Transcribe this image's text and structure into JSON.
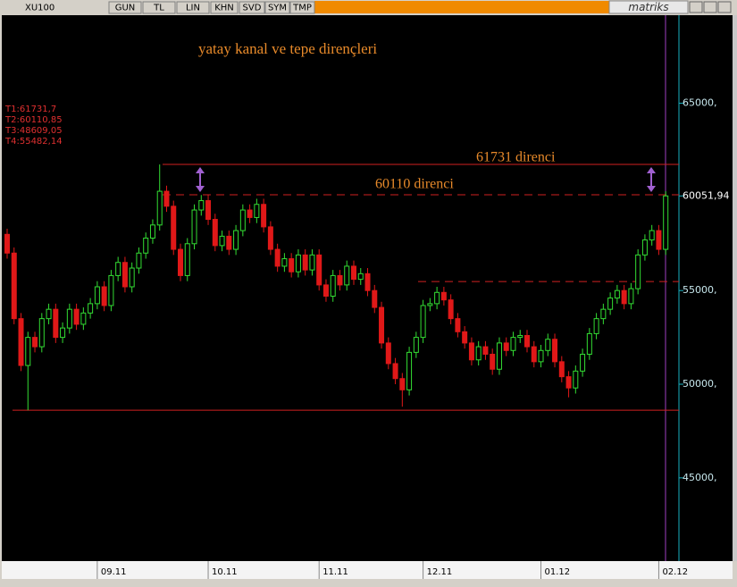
{
  "toolbar": {
    "symbol": "XU100",
    "buttons": [
      "GUN",
      "TL",
      "LIN",
      "KHN",
      "SVD",
      "SYM",
      "TMP"
    ],
    "brand": "matriks"
  },
  "chart_data": {
    "type": "candlestick",
    "title": "yatay kanal ve tepe dirençleri",
    "annotations": [
      "61731 direnci",
      "60110 direnci"
    ],
    "ylim": [
      40700,
      69700
    ],
    "yticks": [
      {
        "value": 45000,
        "label": "45000,"
      },
      {
        "value": 50000,
        "label": "50000,"
      },
      {
        "value": 55000,
        "label": "55000,"
      },
      {
        "value": 65000,
        "label": "65000,"
      }
    ],
    "last_price": {
      "value": 60051.94,
      "label": "60051,94"
    },
    "levels": [
      {
        "label": "T1:61731,7",
        "value": 61731.7
      },
      {
        "label": "T2:60110,85",
        "value": 60110.85
      },
      {
        "label": "T3:48609,05",
        "value": 48609.05
      },
      {
        "label": "T4:55482,14",
        "value": 55482.14
      }
    ],
    "up_color": "#33dd33",
    "down_color": "#e01818",
    "categories": [
      null,
      null,
      null,
      null,
      null,
      null,
      null,
      null,
      null,
      null,
      null,
      null,
      null,
      "09.11",
      null,
      null,
      null,
      null,
      null,
      null,
      null,
      null,
      null,
      null,
      null,
      null,
      null,
      null,
      null,
      "10.11",
      null,
      null,
      null,
      null,
      null,
      null,
      null,
      null,
      null,
      null,
      null,
      null,
      null,
      null,
      null,
      "11.11",
      null,
      null,
      null,
      null,
      null,
      null,
      null,
      null,
      null,
      null,
      null,
      null,
      null,
      null,
      "12.11",
      null,
      null,
      null,
      null,
      null,
      null,
      null,
      null,
      null,
      null,
      null,
      null,
      null,
      null,
      null,
      null,
      "01.12",
      null,
      null,
      null,
      null,
      null,
      null,
      null,
      null,
      null,
      null,
      null,
      null,
      null,
      null,
      null,
      null,
      "02.12",
      null
    ],
    "open": [
      58000,
      57000,
      53500,
      51000,
      52500,
      52000,
      53500,
      54000,
      52500,
      53000,
      54000,
      53200,
      53800,
      54300,
      55200,
      54200,
      55800,
      56500,
      55200,
      56200,
      57000,
      57800,
      58500,
      60300,
      59500,
      57200,
      55800,
      57500,
      59300,
      59800,
      58800,
      57400,
      57900,
      57200,
      58200,
      59300,
      58900,
      59600,
      58400,
      57200,
      56300,
      56700,
      56000,
      56900,
      56100,
      56900,
      55300,
      54700,
      55800,
      55300,
      56300,
      55600,
      55900,
      55000,
      54100,
      52200,
      51100,
      50300,
      49700,
      51700,
      52500,
      54200,
      54300,
      54900,
      54500,
      53500,
      52800,
      52200,
      51300,
      52000,
      51600,
      50800,
      52200,
      51800,
      52500,
      52600,
      52000,
      51200,
      51800,
      52400,
      51200,
      50400,
      49800,
      50700,
      51600,
      52700,
      53500,
      54000,
      54600,
      55000,
      54300,
      55100,
      56900,
      57700,
      58200,
      57200
    ],
    "high": [
      58300,
      57300,
      53800,
      52800,
      52800,
      53800,
      54300,
      54300,
      53300,
      54300,
      54300,
      54100,
      54600,
      55500,
      55500,
      56100,
      56800,
      56800,
      56500,
      57300,
      58100,
      58800,
      61731.7,
      60600,
      59800,
      57500,
      57800,
      59600,
      60100,
      60100,
      59100,
      58200,
      58200,
      58500,
      59600,
      59600,
      59900,
      59900,
      58700,
      57500,
      57000,
      57000,
      57200,
      57200,
      57200,
      57200,
      55600,
      56100,
      56100,
      56600,
      56600,
      56200,
      56200,
      55300,
      54400,
      52500,
      51400,
      50600,
      52000,
      52800,
      54500,
      54600,
      55200,
      55200,
      54800,
      53800,
      53100,
      52500,
      52300,
      52300,
      51900,
      52500,
      52500,
      52800,
      52900,
      52900,
      52300,
      52100,
      52700,
      52700,
      51500,
      50700,
      51000,
      51900,
      53000,
      53800,
      54300,
      54900,
      55300,
      55300,
      55400,
      57200,
      58000,
      58500,
      58500,
      60300
    ],
    "low": [
      56700,
      53200,
      50700,
      48609.05,
      51700,
      51700,
      53200,
      52200,
      52200,
      52700,
      52900,
      52900,
      53500,
      54000,
      53900,
      53900,
      55500,
      54900,
      54900,
      55900,
      56700,
      57500,
      58200,
      59200,
      56900,
      55500,
      55500,
      57200,
      59000,
      58500,
      57100,
      57100,
      56900,
      56900,
      57900,
      58600,
      58600,
      58100,
      56900,
      56000,
      56000,
      55700,
      55700,
      55800,
      55800,
      55000,
      54400,
      54400,
      55000,
      55000,
      55300,
      55300,
      54700,
      53800,
      51900,
      50800,
      50000,
      48800,
      49400,
      51400,
      52200,
      53900,
      54000,
      54200,
      53200,
      52500,
      51900,
      51000,
      51000,
      51300,
      50500,
      50500,
      51500,
      51500,
      52200,
      51700,
      50900,
      50900,
      51500,
      50900,
      50100,
      49300,
      49500,
      50400,
      51300,
      52400,
      53200,
      53700,
      54300,
      54000,
      54000,
      54800,
      56600,
      57400,
      56900,
      56900
    ],
    "close": [
      57000,
      53500,
      51000,
      52500,
      52000,
      53500,
      54000,
      52500,
      53000,
      54000,
      53200,
      53800,
      54300,
      55200,
      54200,
      55800,
      56500,
      55200,
      56200,
      57000,
      57800,
      58500,
      60300,
      59500,
      57200,
      55800,
      57500,
      59300,
      59800,
      58800,
      57400,
      57900,
      57200,
      58200,
      59300,
      58900,
      59600,
      58400,
      57200,
      56300,
      56700,
      56000,
      56900,
      56100,
      56900,
      55300,
      54700,
      55800,
      55300,
      56300,
      55600,
      55900,
      55000,
      54100,
      52200,
      51100,
      50300,
      49700,
      51700,
      52500,
      54200,
      54300,
      54900,
      54500,
      53500,
      52800,
      52200,
      51300,
      52000,
      51600,
      50800,
      52200,
      51800,
      52500,
      52600,
      52000,
      51200,
      51800,
      52400,
      51200,
      50400,
      49800,
      50700,
      51600,
      52700,
      53500,
      54000,
      54600,
      55000,
      54300,
      55100,
      56900,
      57700,
      58200,
      57200,
      60051.94
    ]
  }
}
